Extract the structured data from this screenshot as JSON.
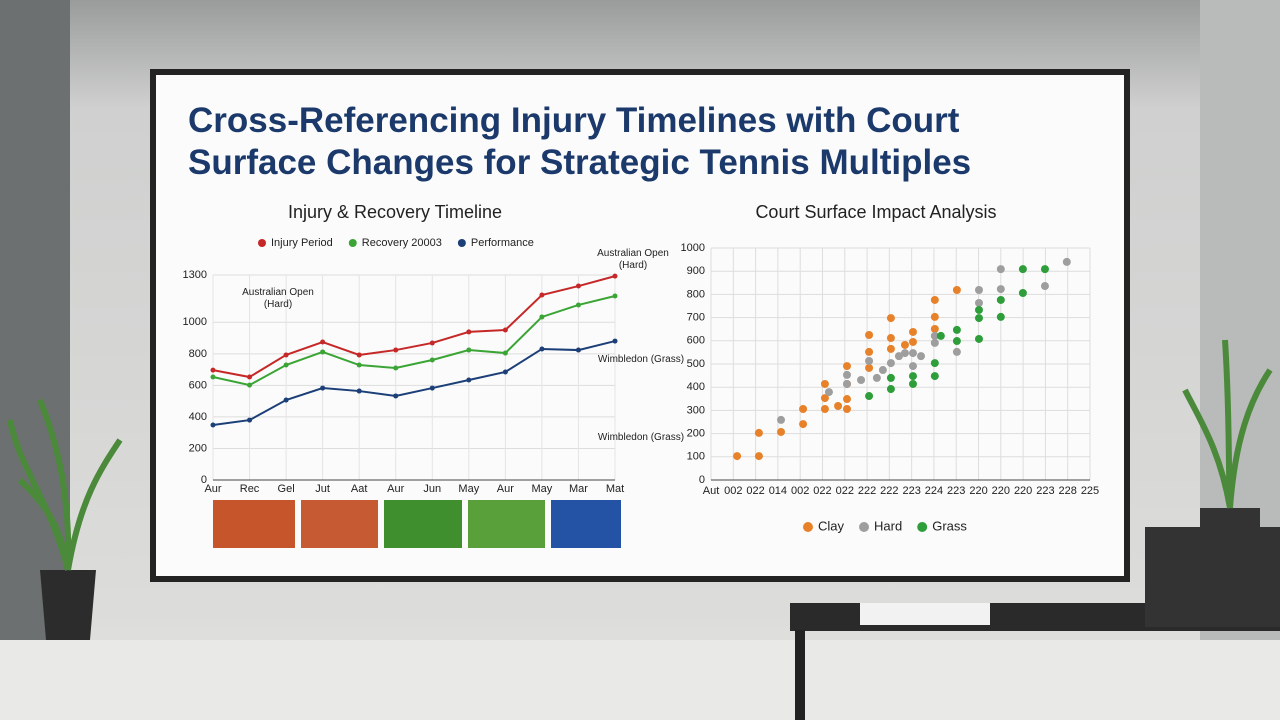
{
  "page_title": "Cross-Referencing Injury Timelines with Court Surface Changes for Strategic Tennis Multiples",
  "chart_data": [
    {
      "type": "line",
      "title": "Injury & Recovery Timeline",
      "categories": [
        "Aur",
        "Rec",
        "Gel",
        "Jut",
        "Aat",
        "Aur",
        "Jun",
        "May",
        "Aur",
        "May",
        "Mar",
        "Mat"
      ],
      "series": [
        {
          "name": "Injury Period",
          "color": "#c62828",
          "values": [
            697,
            653,
            793,
            875,
            793,
            824,
            869,
            939,
            951,
            1173,
            1230,
            1293
          ]
        },
        {
          "name": "Recovery 20003",
          "color": "#3aa535",
          "values": [
            653,
            602,
            729,
            812,
            729,
            710,
            761,
            824,
            805,
            1034,
            1110,
            1167
          ]
        },
        {
          "name": "Performance",
          "color": "#1c3f78",
          "values": [
            349,
            380,
            507,
            583,
            564,
            533,
            583,
            634,
            685,
            831,
            824,
            881
          ]
        }
      ],
      "ylim": [
        0,
        1300
      ],
      "yticks": [
        0,
        200,
        400,
        600,
        800,
        1000,
        1300
      ],
      "grid": true,
      "annotations": [
        "Australian Open (Hard)",
        "Australian Open (Hard)",
        "Wimbledon (Grass)",
        "Wimbledon (Grass)"
      ]
    },
    {
      "type": "scatter",
      "title": "Court Surface Impact Analysis",
      "xlim": [
        0,
        17
      ],
      "xticks": [
        {
          "value": 0,
          "label": "Aut"
        },
        {
          "value": 1,
          "label": "002"
        },
        {
          "value": 2,
          "label": "022"
        },
        {
          "value": 3,
          "label": "014"
        },
        {
          "value": 4,
          "label": "002"
        },
        {
          "value": 5,
          "label": "022"
        },
        {
          "value": 6,
          "label": "022"
        },
        {
          "value": 7,
          "label": "222"
        },
        {
          "value": 8,
          "label": "222"
        },
        {
          "value": 9,
          "label": "223"
        },
        {
          "value": 10,
          "label": "224"
        },
        {
          "value": 11,
          "label": "223"
        },
        {
          "value": 12,
          "label": "220"
        },
        {
          "value": 13,
          "label": "220"
        },
        {
          "value": 14,
          "label": "220"
        },
        {
          "value": 15,
          "label": "223"
        },
        {
          "value": 16,
          "label": "228"
        },
        {
          "value": 17,
          "label": "225"
        }
      ],
      "ylim": [
        0,
        1000
      ],
      "yticks": [
        0,
        100,
        200,
        300,
        400,
        500,
        600,
        700,
        800,
        900,
        1000
      ],
      "grid": true,
      "series": [
        {
          "name": "Clay",
          "color": "#e8822a",
          "x": [
            1.17,
            2.15,
            2.15,
            3.14,
            4.13,
            4.13,
            5.11,
            5.11,
            5.11,
            5.7,
            6.1,
            6.1,
            6.1,
            6.1,
            7.09,
            7.09,
            7.09,
            8.07,
            8.07,
            8.07,
            8.7,
            9.06,
            9.06,
            10.04,
            10.04,
            10.04,
            11.03
          ],
          "values": [
            103,
            103,
            203,
            207,
            241,
            306,
            414,
            353,
            306,
            319,
            491,
            414,
            349,
            306,
            625,
            552,
            483,
            698,
            612,
            565,
            582,
            638,
            595,
            776,
            703,
            651,
            819
          ]
        },
        {
          "name": "Hard",
          "color": "#9e9e9e",
          "x": [
            3.14,
            5.29,
            6.1,
            6.1,
            6.73,
            7.09,
            7.44,
            7.71,
            8.07,
            8.43,
            8.7,
            9.06,
            9.06,
            9.42,
            10.04,
            10.04,
            11.03,
            12.02,
            12.02,
            13,
            13,
            14.98,
            15.96
          ],
          "values": [
            259,
            379,
            453,
            414,
            431,
            513,
            440,
            474,
            504,
            534,
            547,
            547,
            491,
            534,
            621,
            591,
            552,
            819,
            763,
            909,
            823,
            836,
            940
          ]
        },
        {
          "name": "Grass",
          "color": "#2e9e3a",
          "x": [
            7.09,
            8.07,
            8.07,
            9.06,
            9.06,
            10.04,
            10.04,
            10.31,
            11.03,
            11.03,
            12.02,
            12.02,
            12.02,
            13,
            13,
            13.99,
            13.99,
            14.98
          ],
          "values": [
            362,
            392,
            440,
            414,
            448,
            504,
            448,
            621,
            647,
            599,
            698,
            733,
            608,
            776,
            703,
            909,
            806,
            909
          ]
        }
      ]
    }
  ]
}
